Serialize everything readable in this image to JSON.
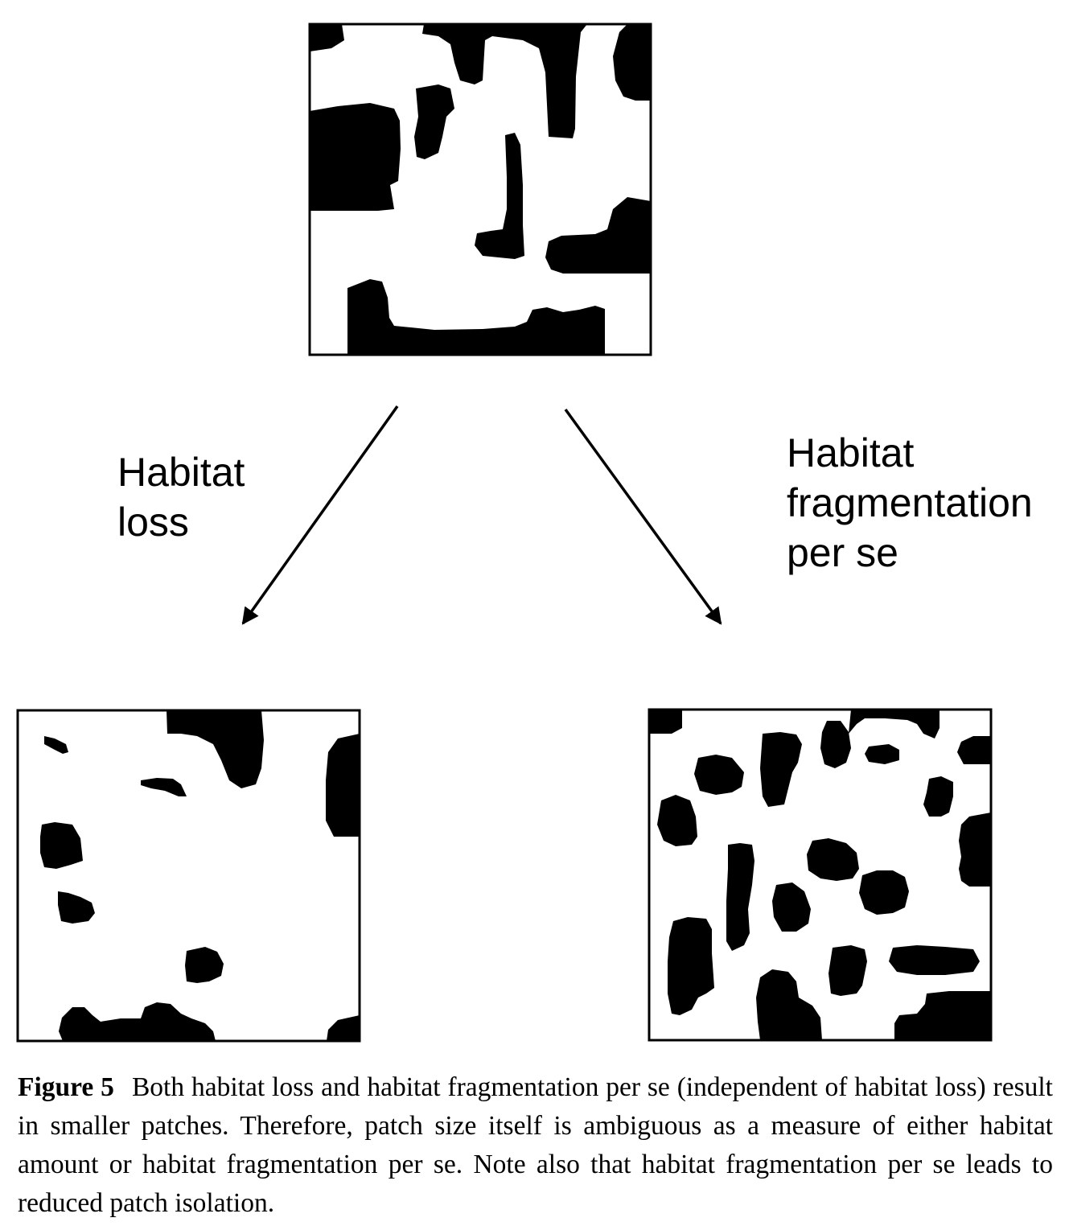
{
  "diagram": {
    "labels": {
      "habitat_loss": [
        "Habitat",
        "loss"
      ],
      "habitat_fragmentation": [
        "Habitat",
        "fragmentation",
        "per se"
      ]
    },
    "landscapes": {
      "original": "original-landscape",
      "after_loss": "landscape-after-habitat-loss",
      "after_fragmentation": "landscape-after-fragmentation"
    },
    "colors": {
      "habitat": "#000000",
      "background": "#ffffff"
    }
  },
  "caption": {
    "figure_label": "Figure 5",
    "text": "Both habitat loss and habitat fragmentation per se (independent of habitat loss) result in smaller patches. Therefore, patch size itself is ambiguous as a measure of either habitat amount or habitat fragmentation per se. Note also that habitat fragmentation per se leads to reduced patch isolation."
  }
}
